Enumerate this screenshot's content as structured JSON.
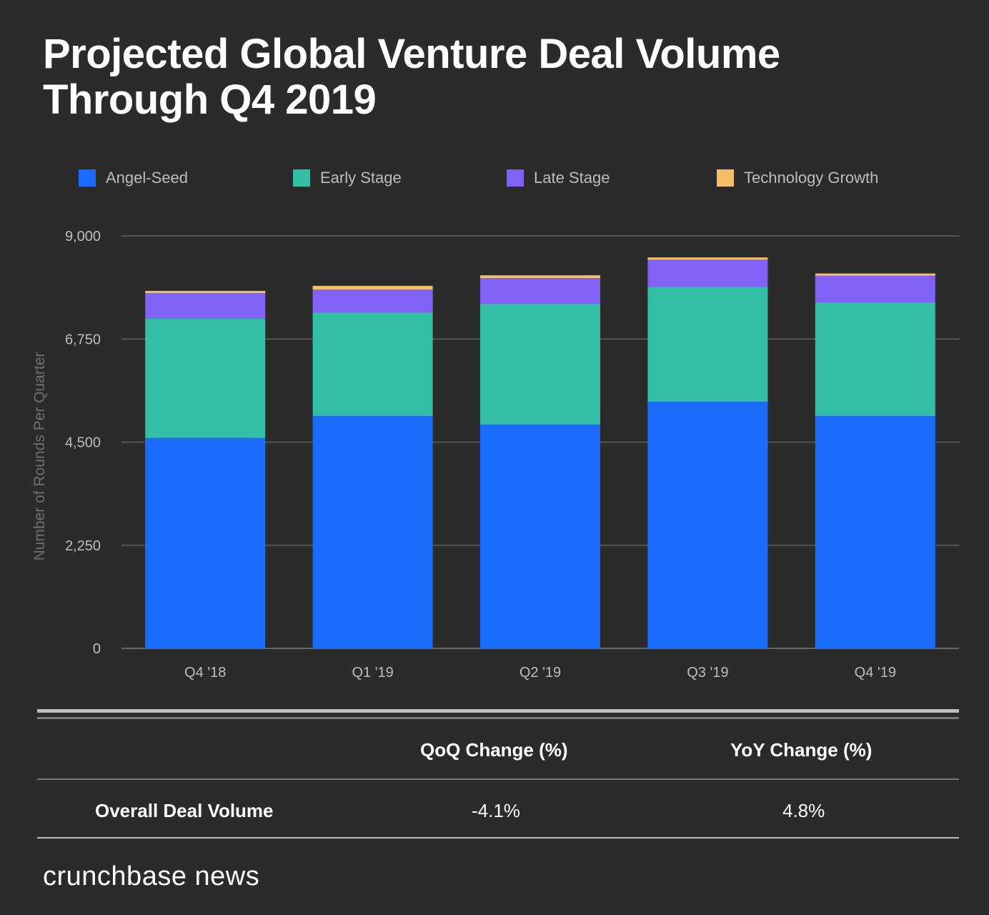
{
  "title": "Projected Global Venture Deal Volume Through Q4 2019",
  "brand": "crunchbase news",
  "legend": [
    {
      "label": "Angel-Seed",
      "color": "#1a6cfc"
    },
    {
      "label": "Early Stage",
      "color": "#33bea6"
    },
    {
      "label": "Late Stage",
      "color": "#8062f7"
    },
    {
      "label": "Technology Growth",
      "color": "#f3bf6a"
    }
  ],
  "chart_data": {
    "type": "bar",
    "stacked": true,
    "title": "Projected Global Venture Deal Volume Through Q4 2019",
    "xlabel": "",
    "ylabel": "Number of Rounds Per Quarter",
    "ylim": [
      0,
      9000
    ],
    "yticks": [
      0,
      2250,
      4500,
      6750,
      9000
    ],
    "ytick_labels": [
      "0",
      "2,250",
      "4,500",
      "6,750",
      "9,000"
    ],
    "grid": true,
    "legend_position": "top",
    "categories": [
      "Q4 '18",
      "Q1 '19",
      "Q2 '19",
      "Q3 '19",
      "Q4 '19"
    ],
    "series": [
      {
        "name": "Angel-Seed",
        "color": "#1a6cfc",
        "values": [
          4590,
          5070,
          4880,
          5380,
          5070
        ]
      },
      {
        "name": "Early Stage",
        "color": "#33bea6",
        "values": [
          2600,
          2260,
          2640,
          2510,
          2480
        ]
      },
      {
        "name": "Late Stage",
        "color": "#8062f7",
        "values": [
          560,
          500,
          560,
          590,
          580
        ]
      },
      {
        "name": "Technology Growth",
        "color": "#f3bf6a",
        "values": [
          50,
          80,
          60,
          50,
          50
        ]
      }
    ]
  },
  "table": {
    "columns": [
      "",
      "QoQ Change (%)",
      "YoY Change (%)"
    ],
    "rows": [
      {
        "label": "Overall Deal Volume",
        "qoq": "-4.1%",
        "yoy": "4.8%"
      }
    ]
  }
}
